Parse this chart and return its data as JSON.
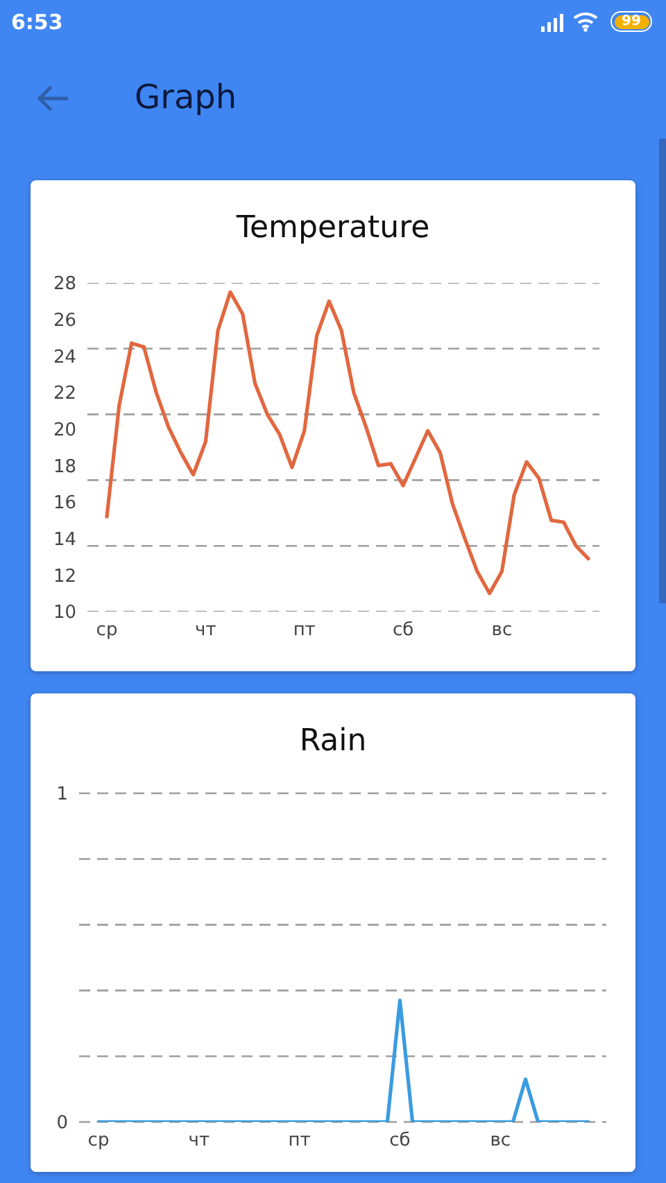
{
  "chart_data": [
    {
      "type": "line",
      "title": "Temperature",
      "categories": [
        "ср",
        null,
        null,
        null,
        null,
        null,
        null,
        null,
        "чт",
        null,
        null,
        null,
        null,
        null,
        null,
        null,
        "пт",
        null,
        null,
        null,
        null,
        null,
        null,
        null,
        "сб",
        null,
        null,
        null,
        null,
        null,
        null,
        null,
        "вс",
        null,
        null,
        null,
        null,
        null,
        null,
        null
      ],
      "values": [
        15.2,
        21.3,
        24.7,
        24.5,
        22.0,
        20.1,
        18.7,
        17.5,
        19.3,
        25.4,
        27.5,
        26.3,
        22.5,
        20.8,
        19.7,
        17.9,
        19.9,
        25.1,
        27.0,
        25.4,
        22.0,
        20.1,
        18.0,
        18.1,
        16.9,
        18.4,
        19.9,
        18.7,
        15.9,
        14.0,
        12.2,
        11.0,
        12.2,
        16.4,
        18.2,
        17.3,
        15.0,
        14.9,
        13.6,
        12.9
      ],
      "color": "#e2673f",
      "ylim": [
        10,
        28
      ],
      "yticks": [
        10,
        12,
        14,
        16,
        18,
        20,
        22,
        24,
        26,
        28
      ],
      "ref_lines": [
        {
          "axis": "y",
          "value": 10,
          "line_style": "dashed",
          "color": "#9e9e9e"
        },
        {
          "axis": "y",
          "value": 13.6,
          "line_style": "dashed",
          "color": "#9e9e9e"
        },
        {
          "axis": "y",
          "value": 17.2,
          "line_style": "dashed",
          "color": "#9e9e9e"
        },
        {
          "axis": "y",
          "value": 20.8,
          "line_style": "dashed",
          "color": "#9e9e9e"
        },
        {
          "axis": "y",
          "value": 24.4,
          "line_style": "dashed",
          "color": "#9e9e9e"
        },
        {
          "axis": "y",
          "value": 28,
          "line_style": "dashed",
          "color": "#9e9e9e"
        }
      ],
      "marker": "none",
      "annotations": [
        "6:53",
        "99",
        "Graph"
      ]
    },
    {
      "type": "line",
      "title": "Rain",
      "categories": [
        "ср",
        null,
        null,
        null,
        null,
        null,
        null,
        null,
        "чт",
        null,
        null,
        null,
        null,
        null,
        null,
        null,
        "пт",
        null,
        null,
        null,
        null,
        null,
        null,
        null,
        "сб",
        null,
        null,
        null,
        null,
        null,
        null,
        null,
        "вс",
        null,
        null,
        null,
        null,
        null,
        null,
        null
      ],
      "values": [
        0,
        0,
        0,
        0,
        0,
        0,
        0,
        0,
        0,
        0,
        0,
        0,
        0,
        0,
        0,
        0,
        0,
        0,
        0,
        0,
        0,
        0,
        0,
        0,
        0.37,
        0,
        0,
        0,
        0,
        0,
        0,
        0,
        0,
        0,
        0.13,
        0,
        0,
        0,
        0,
        0
      ],
      "color": "#3b9be0",
      "ylim": [
        0,
        1
      ],
      "yticks": [
        0,
        {
          "value": 0.2,
          "label": null
        },
        {
          "value": 0.4,
          "label": null
        },
        {
          "value": 0.6,
          "label": null
        },
        {
          "value": 0.8,
          "label": null
        },
        1
      ],
      "grid": "y",
      "marker": "none"
    }
  ]
}
